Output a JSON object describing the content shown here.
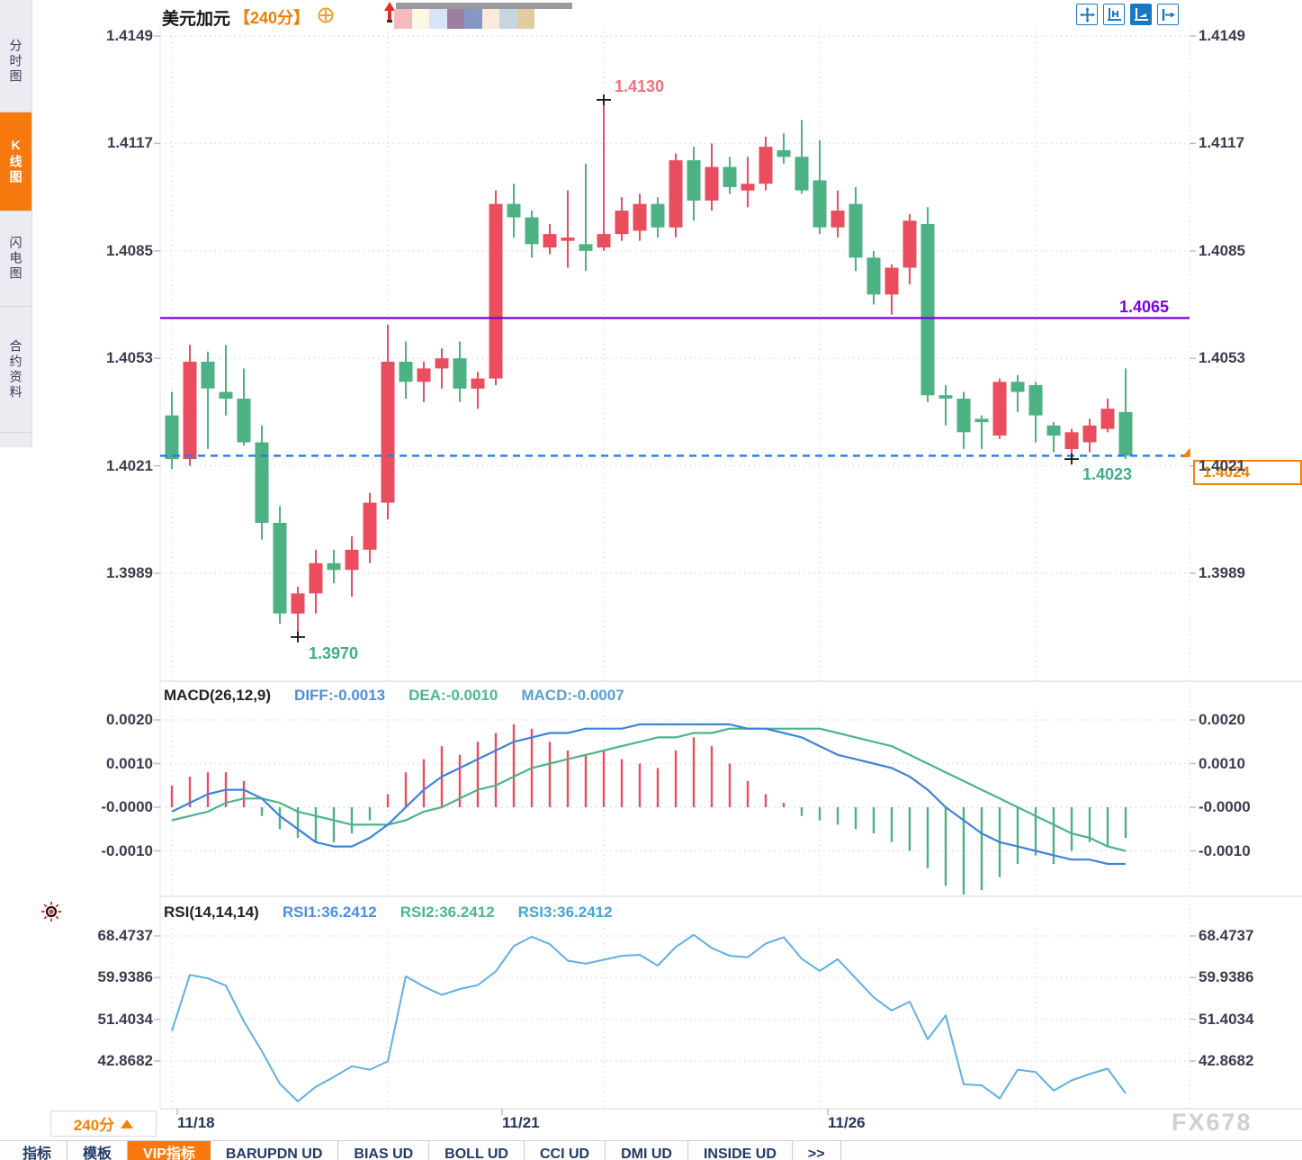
{
  "header": {
    "title": "美元加元",
    "period": "【240分】",
    "picker_colors": [
      "#f6b9c0",
      "#fdf8e2",
      "#d7e4f6",
      "#9d7fa0",
      "#8497c5",
      "#fce9da",
      "#c6d5e2",
      "#e2cb9e"
    ]
  },
  "sidebar": {
    "tabs": [
      {
        "label": "分时图",
        "active": false
      },
      {
        "label": "K线图",
        "active": true
      },
      {
        "label": "闪电图",
        "active": false
      },
      {
        "label": "合约资料",
        "active": false
      }
    ]
  },
  "toolbar": {
    "icons": [
      "move-chart-icon",
      "axis-scale-icon",
      "auto-fit-icon",
      "go-latest-icon"
    ]
  },
  "annotations": {
    "marked_high": "1.4130",
    "marked_low": "1.3970",
    "marked_last_low": "1.4023",
    "support_line": "1.4065",
    "current_price": "1.4024"
  },
  "macd_header": {
    "label": "MACD(26,12,9)",
    "diff_label": "DIFF:-0.0013",
    "dea_label": "DEA:-0.0010",
    "macd_label": "MACD:-0.0007"
  },
  "rsi_header": {
    "label": "RSI(14,14,14)",
    "rsi1_label": "RSI1:36.2412",
    "rsi2_label": "RSI2:36.2412",
    "rsi3_label": "RSI3:36.2412"
  },
  "xaxis": {
    "dates": [
      "11/18",
      "11/21",
      "11/26"
    ],
    "timeframe": "240分",
    "gridline_indices": [
      0,
      12,
      24,
      36,
      48
    ]
  },
  "bottom_tabs": [
    {
      "label": "指标",
      "active": false
    },
    {
      "label": "模板",
      "active": false
    },
    {
      "label": "VIP指标",
      "active": true
    },
    {
      "label": "BARUPDN UD",
      "active": false
    },
    {
      "label": "BIAS UD",
      "active": false
    },
    {
      "label": "BOLL UD",
      "active": false
    },
    {
      "label": "CCI UD",
      "active": false
    },
    {
      "label": "DMI UD",
      "active": false
    },
    {
      "label": "INSIDE UD",
      "active": false
    },
    {
      "label": ">>",
      "active": false
    }
  ],
  "watermark": "FX678",
  "colors": {
    "up": "#ea4e5e",
    "down": "#4cb183",
    "accent_orange": "#f5820a",
    "support_purple": "#7a00e8",
    "price_dash_blue": "#1e7ef0",
    "diff_blue": "#3f83d9",
    "dea_green": "#4db388",
    "rsi_blue": "#5fb0e2",
    "annot_red": "#f2707e",
    "annot_green": "#3fae87",
    "grid": "#dedee6"
  },
  "chart_data": [
    {
      "type": "candlestick",
      "title": "美元加元 240分",
      "yticks": [
        "1.4149",
        "1.4117",
        "1.4085",
        "1.4053",
        "1.4021",
        "1.3989"
      ],
      "ylim": [
        1.3962,
        1.4155
      ],
      "support_line": 1.4065,
      "current_price_line": 1.4024,
      "marked_high": {
        "index": 24,
        "price": 1.413
      },
      "marked_low": {
        "index": 7,
        "price": 1.397
      },
      "marked_last_low": {
        "index": 50,
        "price": 1.4023
      },
      "ohlc": [
        [
          1.4036,
          1.4043,
          1.402,
          1.4023
        ],
        [
          1.4023,
          1.4057,
          1.4021,
          1.4052
        ],
        [
          1.4052,
          1.4055,
          1.4026,
          1.4044
        ],
        [
          1.4043,
          1.4057,
          1.4036,
          1.4041
        ],
        [
          1.4041,
          1.405,
          1.4027,
          1.4028
        ],
        [
          1.4028,
          1.4033,
          1.3999,
          1.4004
        ],
        [
          1.4004,
          1.4009,
          1.3974,
          1.3977
        ],
        [
          1.3977,
          1.3985,
          1.397,
          1.3983
        ],
        [
          1.3983,
          1.3996,
          1.3977,
          1.3992
        ],
        [
          1.3992,
          1.3996,
          1.3986,
          1.399
        ],
        [
          1.399,
          1.4,
          1.3982,
          1.3996
        ],
        [
          1.3996,
          1.4013,
          1.3992,
          1.401
        ],
        [
          1.401,
          1.4063,
          1.4005,
          1.4052
        ],
        [
          1.4052,
          1.4058,
          1.4041,
          1.4046
        ],
        [
          1.4046,
          1.4052,
          1.404,
          1.405
        ],
        [
          1.405,
          1.4056,
          1.4044,
          1.4053
        ],
        [
          1.4053,
          1.4058,
          1.404,
          1.4044
        ],
        [
          1.4044,
          1.4049,
          1.4038,
          1.4047
        ],
        [
          1.4047,
          1.4103,
          1.4045,
          1.4099
        ],
        [
          1.4099,
          1.4105,
          1.4089,
          1.4095
        ],
        [
          1.4095,
          1.4097,
          1.4083,
          1.4087
        ],
        [
          1.4086,
          1.4093,
          1.4084,
          1.409
        ],
        [
          1.4088,
          1.4103,
          1.408,
          1.4089
        ],
        [
          1.4087,
          1.4111,
          1.4079,
          1.4085
        ],
        [
          1.4086,
          1.413,
          1.4085,
          1.409
        ],
        [
          1.409,
          1.4101,
          1.4088,
          1.4097
        ],
        [
          1.4091,
          1.4102,
          1.4088,
          1.4099
        ],
        [
          1.4099,
          1.4101,
          1.4089,
          1.4092
        ],
        [
          1.4092,
          1.4114,
          1.4089,
          1.4112
        ],
        [
          1.4112,
          1.4116,
          1.4094,
          1.41
        ],
        [
          1.41,
          1.4117,
          1.4097,
          1.411
        ],
        [
          1.411,
          1.4113,
          1.4102,
          1.4104
        ],
        [
          1.4103,
          1.4113,
          1.4098,
          1.4105
        ],
        [
          1.4105,
          1.4119,
          1.4103,
          1.4116
        ],
        [
          1.4115,
          1.412,
          1.4111,
          1.4113
        ],
        [
          1.4113,
          1.4124,
          1.4102,
          1.4103
        ],
        [
          1.4106,
          1.4118,
          1.409,
          1.4092
        ],
        [
          1.4092,
          1.4103,
          1.4089,
          1.4097
        ],
        [
          1.4099,
          1.4104,
          1.4079,
          1.4083
        ],
        [
          1.4083,
          1.4085,
          1.4069,
          1.4072
        ],
        [
          1.4072,
          1.4081,
          1.4066,
          1.408
        ],
        [
          1.408,
          1.4096,
          1.4075,
          1.4094
        ],
        [
          1.4093,
          1.4098,
          1.404,
          1.4042
        ],
        [
          1.4042,
          1.4045,
          1.4033,
          1.4041
        ],
        [
          1.4041,
          1.4043,
          1.4026,
          1.4031
        ],
        [
          1.4035,
          1.4036,
          1.4026,
          1.4034
        ],
        [
          1.403,
          1.4047,
          1.4029,
          1.4046
        ],
        [
          1.4046,
          1.4048,
          1.4037,
          1.4043
        ],
        [
          1.4045,
          1.4046,
          1.4028,
          1.4036
        ],
        [
          1.4033,
          1.4034,
          1.4025,
          1.403
        ],
        [
          1.4026,
          1.4032,
          1.4023,
          1.4031
        ],
        [
          1.4028,
          1.4035,
          1.4025,
          1.4033
        ],
        [
          1.4032,
          1.4041,
          1.4031,
          1.4038
        ],
        [
          1.4037,
          1.405,
          1.4023,
          1.4024
        ]
      ]
    },
    {
      "type": "bar+line",
      "name": "MACD",
      "params": "(26,12,9)",
      "yticks": [
        "0.0020",
        "0.0010",
        "-0.0000",
        "-0.0010"
      ],
      "hist": [
        0.0005,
        0.0007,
        0.0008,
        0.0008,
        0.0006,
        -0.0002,
        -0.0005,
        -0.0007,
        -0.0008,
        -0.0008,
        -0.0006,
        -0.0003,
        0.0003,
        0.0008,
        0.0011,
        0.0014,
        0.0012,
        0.0015,
        0.0017,
        0.0019,
        0.0018,
        0.0015,
        0.0013,
        0.0012,
        0.0013,
        0.0011,
        0.001,
        0.0009,
        0.0013,
        0.0016,
        0.0014,
        0.001,
        0.0006,
        0.0003,
        0.0001,
        -0.0002,
        -0.0003,
        -0.0004,
        -0.0005,
        -0.0006,
        -0.0008,
        -0.001,
        -0.0014,
        -0.0018,
        -0.002,
        -0.0019,
        -0.0016,
        -0.0013,
        -0.0011,
        -0.0013,
        -0.001,
        -0.0008,
        -0.0009,
        -0.0007
      ],
      "diff": [
        -0.0001,
        0.0001,
        0.0003,
        0.0004,
        0.0004,
        0.0002,
        -0.0002,
        -0.0005,
        -0.0008,
        -0.0009,
        -0.0009,
        -0.0007,
        -0.0004,
        0.0,
        0.0004,
        0.0007,
        0.0009,
        0.0011,
        0.0013,
        0.0015,
        0.0016,
        0.0017,
        0.0017,
        0.0018,
        0.0018,
        0.0018,
        0.0019,
        0.0019,
        0.0019,
        0.0019,
        0.0019,
        0.0019,
        0.0018,
        0.0018,
        0.0017,
        0.0016,
        0.0014,
        0.0012,
        0.0011,
        0.001,
        0.0009,
        0.0007,
        0.0004,
        0.0,
        -0.0003,
        -0.0006,
        -0.0008,
        -0.0009,
        -0.001,
        -0.0011,
        -0.0012,
        -0.0012,
        -0.0013,
        -0.0013
      ],
      "dea": [
        -0.0003,
        -0.0002,
        -0.0001,
        0.0001,
        0.0002,
        0.0002,
        0.0001,
        -0.0001,
        -0.0002,
        -0.0003,
        -0.0004,
        -0.0004,
        -0.0004,
        -0.0003,
        -0.0001,
        0.0,
        0.0002,
        0.0004,
        0.0005,
        0.0007,
        0.0009,
        0.001,
        0.0011,
        0.0012,
        0.0013,
        0.0014,
        0.0015,
        0.0016,
        0.0016,
        0.0017,
        0.0017,
        0.0018,
        0.0018,
        0.0018,
        0.0018,
        0.0018,
        0.0018,
        0.0017,
        0.0016,
        0.0015,
        0.0014,
        0.0012,
        0.001,
        0.0008,
        0.0006,
        0.0004,
        0.0002,
        0.0,
        -0.0002,
        -0.0004,
        -0.0006,
        -0.0007,
        -0.0009,
        -0.001
      ]
    },
    {
      "type": "line",
      "name": "RSI",
      "params": "(14,14,14)",
      "yticks": [
        "68.4737",
        "59.9386",
        "51.4034",
        "42.8682"
      ],
      "values": [
        49.0,
        60.5,
        59.8,
        58.3,
        51.0,
        44.9,
        38.2,
        34.6,
        37.6,
        39.6,
        41.8,
        41.1,
        42.8,
        60.2,
        58.1,
        56.4,
        57.6,
        58.4,
        61.2,
        66.4,
        68.3,
        66.8,
        63.4,
        62.8,
        63.6,
        64.4,
        64.6,
        62.4,
        66.2,
        68.7,
        66.0,
        64.4,
        64.1,
        66.9,
        68.2,
        63.8,
        61.3,
        63.7,
        59.8,
        55.9,
        53.2,
        55.0,
        47.3,
        52.2,
        38.1,
        37.9,
        35.2,
        41.1,
        40.6,
        36.8,
        38.9,
        40.2,
        41.3,
        36.2412
      ]
    }
  ]
}
